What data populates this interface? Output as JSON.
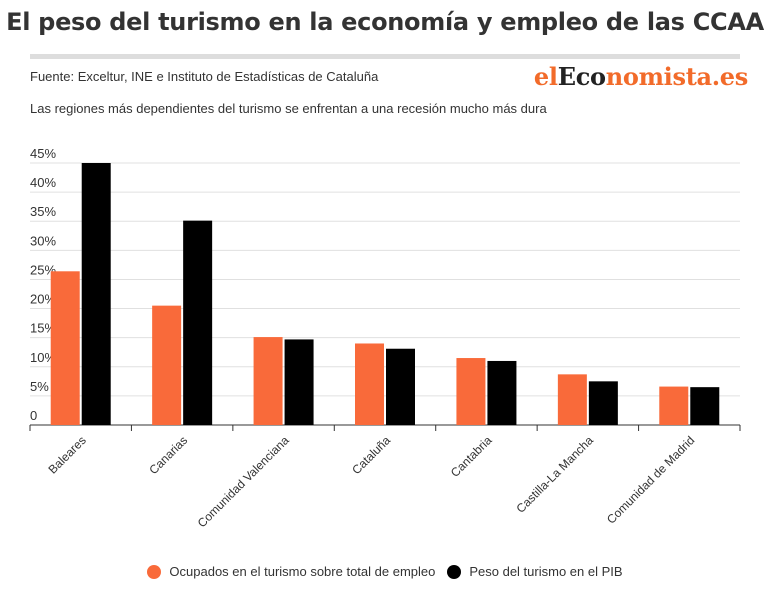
{
  "header": {
    "title": "El peso del turismo en la economía y empleo de las CCAA",
    "source": "Fuente: Exceltur, INE e Instituto de Estadísticas de Cataluña",
    "subtitle": "Las regiones más dependientes del turismo se enfrentan a una recesión mucho más dura",
    "logo_left": "el",
    "logo_mid": "Eco",
    "logo_right": "nomista.es"
  },
  "colors": {
    "orange": "#f96a3a",
    "black": "#000000",
    "grid": "#e0e0e0"
  },
  "chart_data": {
    "type": "bar",
    "title": "El peso del turismo en la economía y empleo de las CCAA",
    "categories": [
      "Baleares",
      "Canarias",
      "Comunidad Valenciana",
      "Cataluña",
      "Cantabria",
      "Castilla-La Mancha",
      "Comunidad de Madrid"
    ],
    "series": [
      {
        "name": "Ocupados en el turismo sobre total de empleo",
        "color": "#f96a3a",
        "values": [
          26.4,
          20.5,
          15.1,
          14.0,
          11.5,
          8.7,
          6.6
        ]
      },
      {
        "name": "Peso del turismo en el PIB",
        "color": "#000000",
        "values": [
          45.0,
          35.1,
          14.7,
          13.1,
          11.0,
          7.5,
          6.5
        ]
      }
    ],
    "ylim": [
      0,
      45
    ],
    "yticks": [
      0,
      5,
      10,
      15,
      20,
      25,
      30,
      35,
      40,
      45
    ],
    "ytick_labels": [
      "0",
      "5%",
      "10%",
      "15%",
      "20%",
      "25%",
      "30%",
      "35%",
      "40%",
      "45%"
    ],
    "xlabel": "",
    "ylabel": "",
    "grid": true,
    "legend_position": "bottom"
  }
}
